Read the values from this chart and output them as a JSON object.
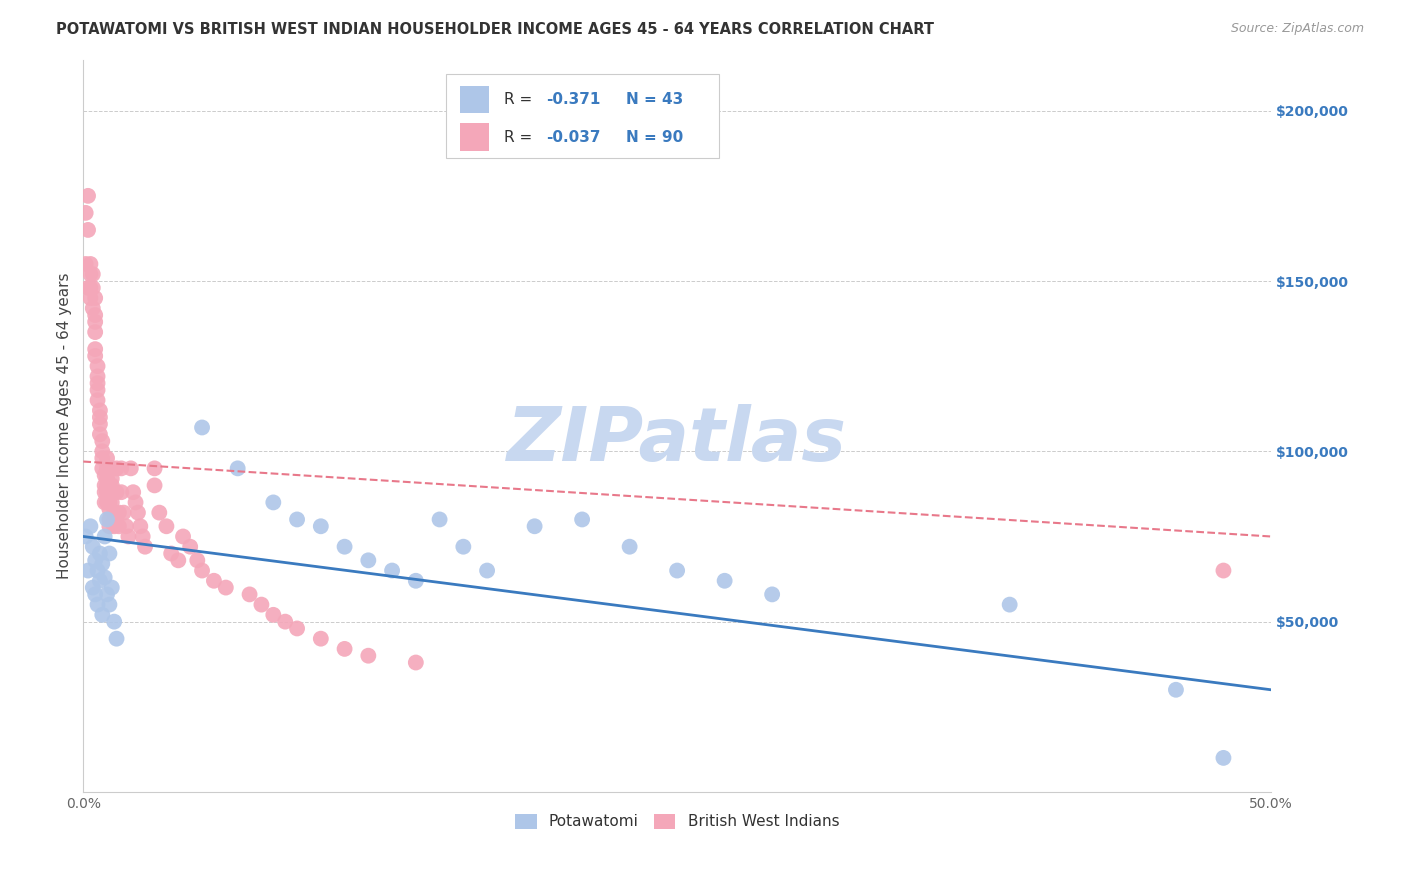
{
  "title": "POTAWATOMI VS BRITISH WEST INDIAN HOUSEHOLDER INCOME AGES 45 - 64 YEARS CORRELATION CHART",
  "source": "Source: ZipAtlas.com",
  "ylabel": "Householder Income Ages 45 - 64 years",
  "xlim": [
    0.0,
    0.5
  ],
  "ylim": [
    0,
    215000
  ],
  "xticks": [
    0.0,
    0.05,
    0.1,
    0.15,
    0.2,
    0.25,
    0.3,
    0.35,
    0.4,
    0.45,
    0.5
  ],
  "xticklabels": [
    "0.0%",
    "",
    "",
    "",
    "",
    "",
    "",
    "",
    "",
    "",
    "50.0%"
  ],
  "yticks_right": [
    50000,
    100000,
    150000,
    200000
  ],
  "ytick_right_labels": [
    "$50,000",
    "$100,000",
    "$150,000",
    "$200,000"
  ],
  "potawatomi_color": "#aec6e8",
  "bwi_color": "#f4a7b9",
  "potawatomi_line_color": "#3a7abf",
  "bwi_line_color": "#e8788a",
  "legend_r_potawatomi": "-0.371",
  "legend_n_potawatomi": "43",
  "legend_r_bwi": "-0.037",
  "legend_n_bwi": "90",
  "watermark": "ZIPatlas",
  "watermark_color": "#c8d8f0",
  "potawatomi_x": [
    0.001,
    0.002,
    0.003,
    0.004,
    0.004,
    0.005,
    0.005,
    0.006,
    0.006,
    0.007,
    0.007,
    0.008,
    0.008,
    0.009,
    0.009,
    0.01,
    0.01,
    0.011,
    0.011,
    0.012,
    0.013,
    0.014,
    0.05,
    0.065,
    0.08,
    0.09,
    0.1,
    0.11,
    0.12,
    0.13,
    0.14,
    0.15,
    0.16,
    0.17,
    0.19,
    0.21,
    0.23,
    0.25,
    0.27,
    0.29,
    0.39,
    0.46,
    0.48
  ],
  "potawatomi_y": [
    75000,
    65000,
    78000,
    72000,
    60000,
    68000,
    58000,
    65000,
    55000,
    70000,
    62000,
    67000,
    52000,
    75000,
    63000,
    80000,
    58000,
    70000,
    55000,
    60000,
    50000,
    45000,
    107000,
    95000,
    85000,
    80000,
    78000,
    72000,
    68000,
    65000,
    62000,
    80000,
    72000,
    65000,
    78000,
    80000,
    72000,
    65000,
    62000,
    58000,
    55000,
    30000,
    10000
  ],
  "bwi_x": [
    0.001,
    0.001,
    0.002,
    0.002,
    0.002,
    0.003,
    0.003,
    0.003,
    0.003,
    0.004,
    0.004,
    0.004,
    0.005,
    0.005,
    0.005,
    0.005,
    0.005,
    0.005,
    0.006,
    0.006,
    0.006,
    0.006,
    0.006,
    0.007,
    0.007,
    0.007,
    0.007,
    0.008,
    0.008,
    0.008,
    0.008,
    0.009,
    0.009,
    0.009,
    0.009,
    0.01,
    0.01,
    0.01,
    0.01,
    0.01,
    0.01,
    0.011,
    0.011,
    0.011,
    0.011,
    0.012,
    0.012,
    0.012,
    0.012,
    0.013,
    0.013,
    0.013,
    0.014,
    0.014,
    0.015,
    0.015,
    0.016,
    0.016,
    0.017,
    0.018,
    0.019,
    0.02,
    0.021,
    0.022,
    0.023,
    0.024,
    0.025,
    0.026,
    0.03,
    0.03,
    0.032,
    0.035,
    0.037,
    0.04,
    0.042,
    0.045,
    0.048,
    0.05,
    0.055,
    0.06,
    0.07,
    0.075,
    0.08,
    0.085,
    0.09,
    0.1,
    0.11,
    0.12,
    0.14,
    0.48
  ],
  "bwi_y": [
    170000,
    155000,
    175000,
    165000,
    148000,
    155000,
    152000,
    148000,
    145000,
    142000,
    152000,
    148000,
    145000,
    140000,
    138000,
    135000,
    130000,
    128000,
    125000,
    122000,
    120000,
    118000,
    115000,
    112000,
    110000,
    108000,
    105000,
    103000,
    100000,
    98000,
    95000,
    93000,
    90000,
    88000,
    85000,
    98000,
    95000,
    92000,
    90000,
    88000,
    85000,
    85000,
    83000,
    80000,
    78000,
    95000,
    92000,
    90000,
    85000,
    82000,
    80000,
    78000,
    95000,
    88000,
    82000,
    78000,
    95000,
    88000,
    82000,
    78000,
    75000,
    95000,
    88000,
    85000,
    82000,
    78000,
    75000,
    72000,
    95000,
    90000,
    82000,
    78000,
    70000,
    68000,
    75000,
    72000,
    68000,
    65000,
    62000,
    60000,
    58000,
    55000,
    52000,
    50000,
    48000,
    45000,
    42000,
    40000,
    38000,
    65000
  ]
}
